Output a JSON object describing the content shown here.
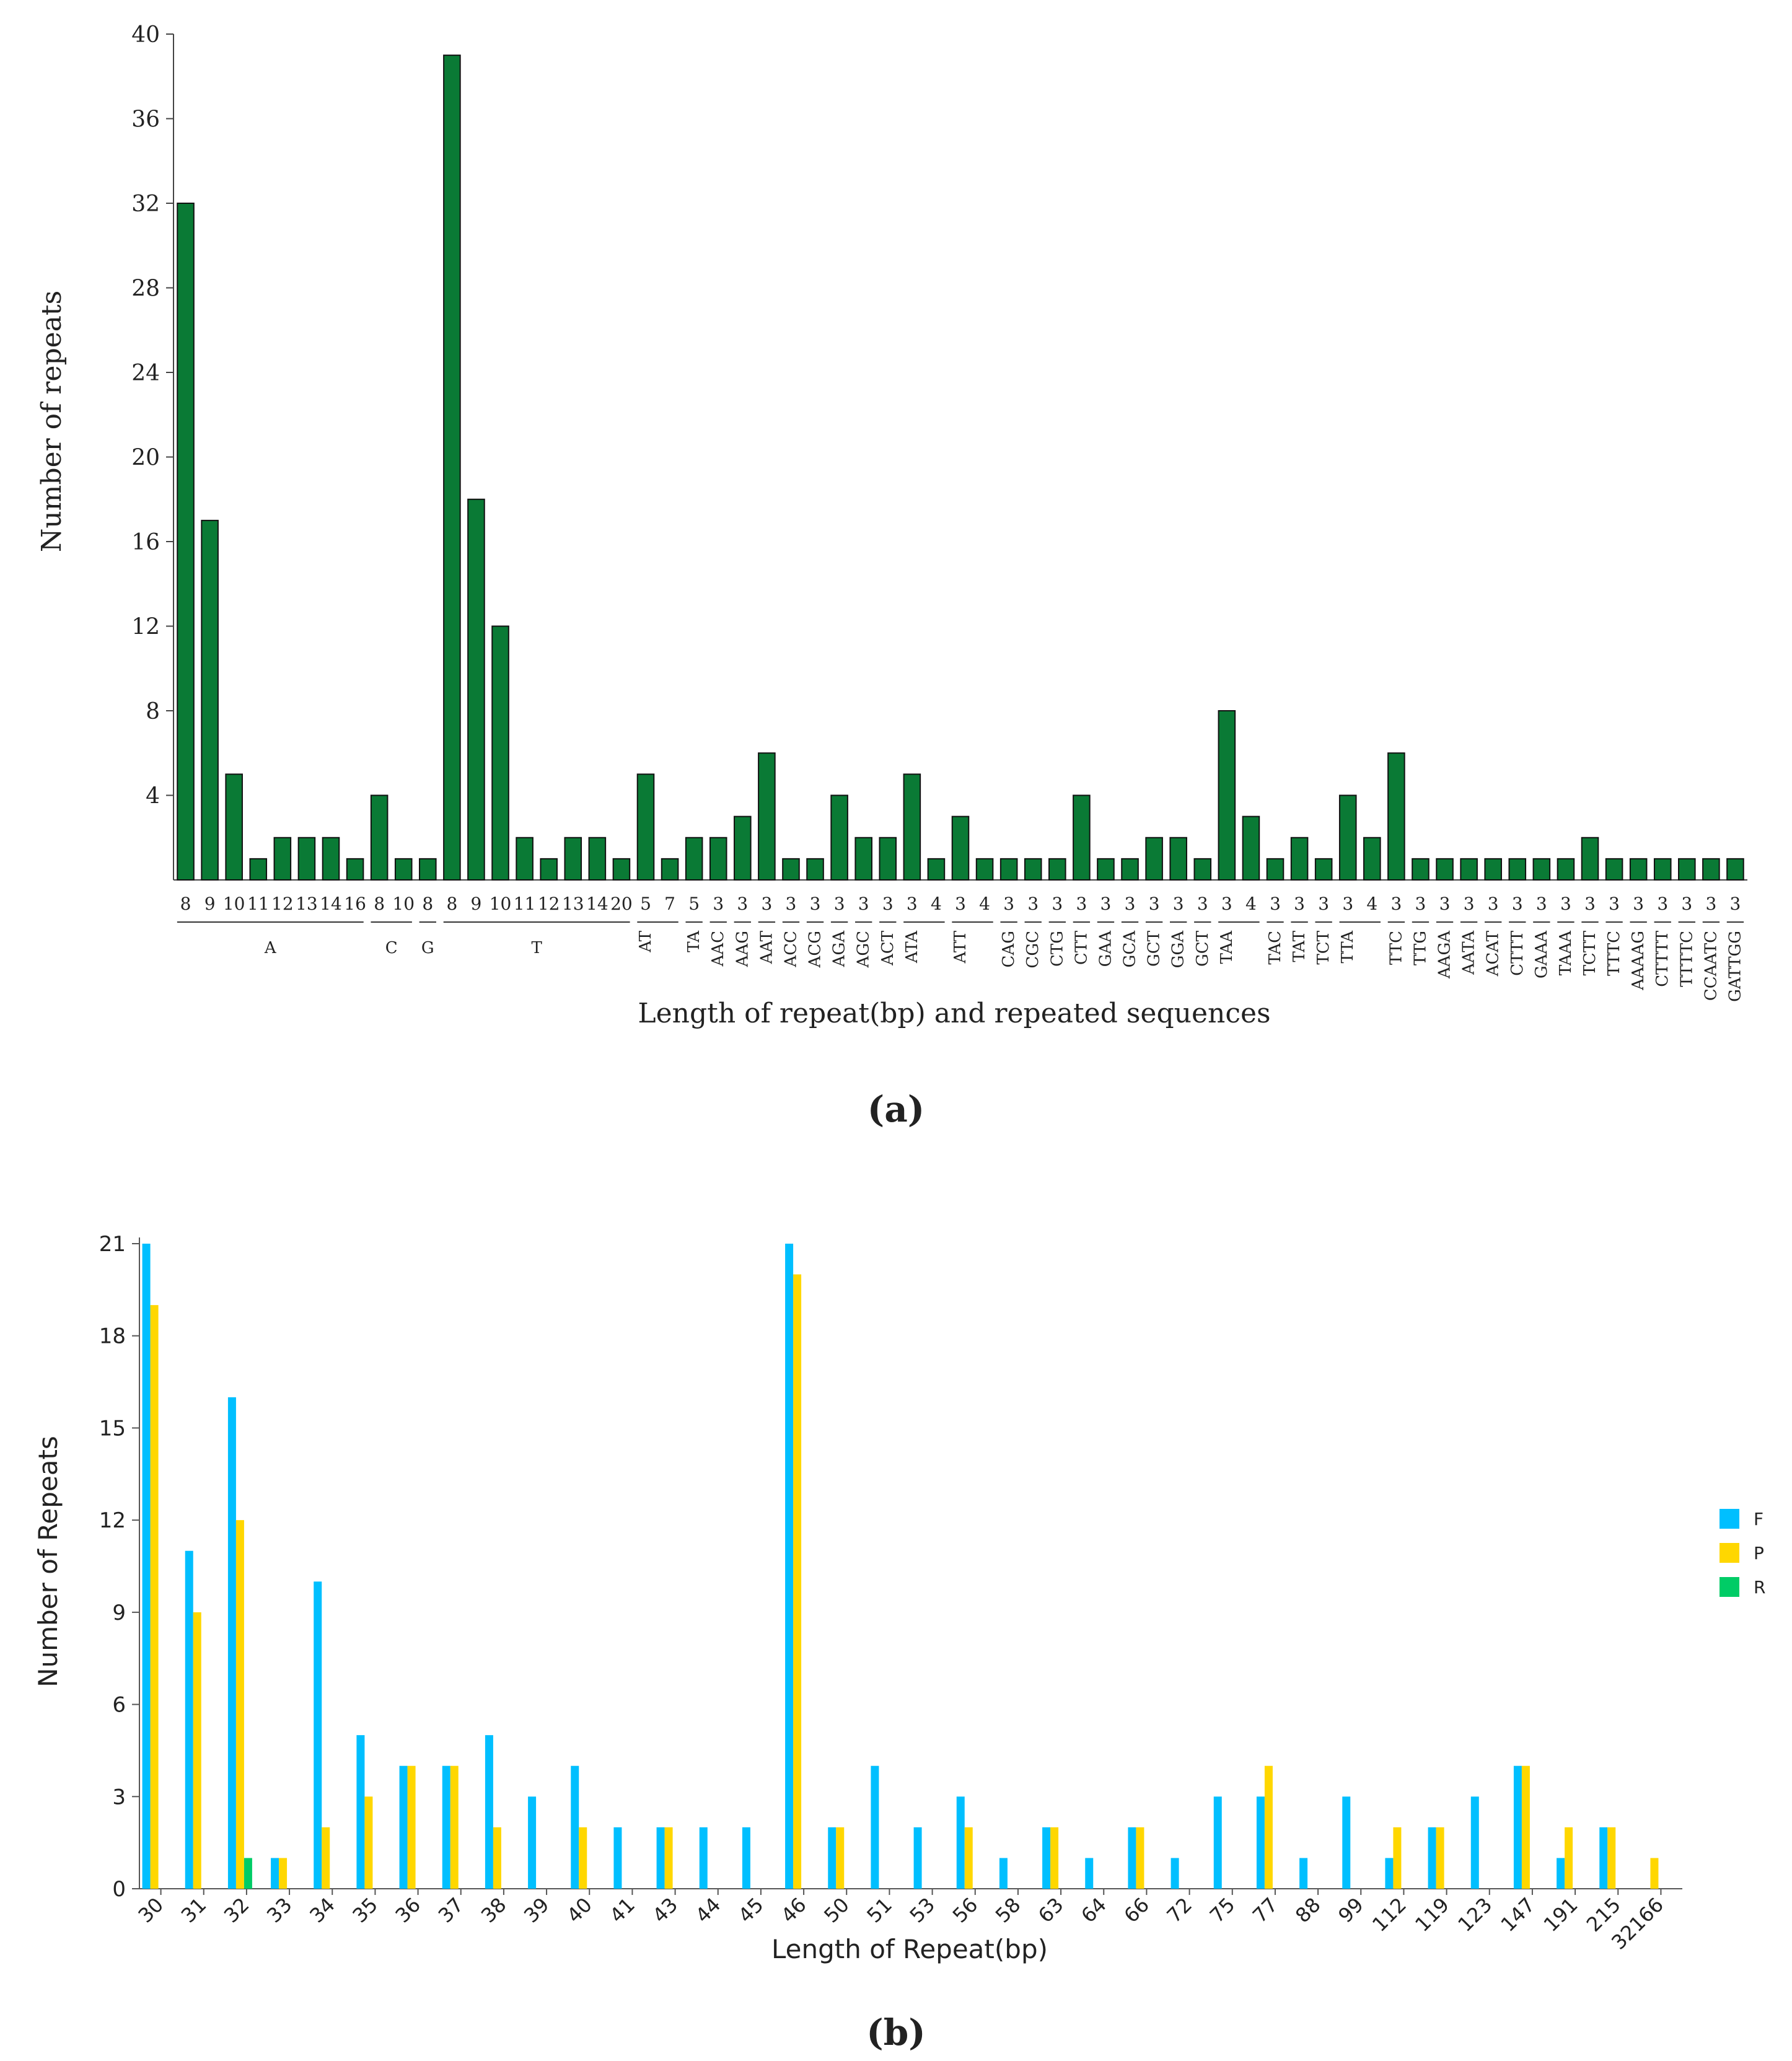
{
  "chart_data": [
    {
      "id": "a",
      "type": "bar",
      "panel_label": "a",
      "xlabel": "Length of repeat(bp) and repeated sequences",
      "ylabel": "Number of repeats",
      "ylim": [
        0,
        40
      ],
      "yticks": [
        "4",
        "8",
        "12",
        "16",
        "20",
        "24",
        "28",
        "32",
        "36",
        "40"
      ],
      "bar_color": "#0a7a35",
      "groups": [
        {
          "name": "A",
          "start": 0,
          "end": 7
        },
        {
          "name": "C",
          "start": 8,
          "end": 9
        },
        {
          "name": "G",
          "start": 10,
          "end": 10
        },
        {
          "name": "T",
          "start": 11,
          "end": 18
        },
        {
          "name": "AT",
          "start": 19,
          "end": 20
        },
        {
          "name": "TA",
          "start": 21,
          "end": 21
        },
        {
          "name": "AAC",
          "start": 22,
          "end": 22
        },
        {
          "name": "AAG",
          "start": 23,
          "end": 23
        },
        {
          "name": "AAT",
          "start": 24,
          "end": 24
        },
        {
          "name": "ACC",
          "start": 25,
          "end": 25
        },
        {
          "name": "ACG",
          "start": 26,
          "end": 26
        },
        {
          "name": "AGA",
          "start": 27,
          "end": 27
        },
        {
          "name": "AGC",
          "start": 28,
          "end": 28
        },
        {
          "name": "ACT",
          "start": 29,
          "end": 29
        },
        {
          "name": "ATA",
          "start": 30,
          "end": 31
        },
        {
          "name": "ATT",
          "start": 32,
          "end": 33
        },
        {
          "name": "CAG",
          "start": 34,
          "end": 34
        },
        {
          "name": "CGC",
          "start": 35,
          "end": 35
        },
        {
          "name": "CTG",
          "start": 36,
          "end": 36
        },
        {
          "name": "CTT",
          "start": 37,
          "end": 37
        },
        {
          "name": "GAA",
          "start": 38,
          "end": 38
        },
        {
          "name": "GCA",
          "start": 39,
          "end": 39
        },
        {
          "name": "GCT",
          "start": 40,
          "end": 40
        },
        {
          "name": "GGA",
          "start": 41,
          "end": 41
        },
        {
          "name": "GCT",
          "start": 42,
          "end": 42
        },
        {
          "name": "TAA",
          "start": 43,
          "end": 44
        },
        {
          "name": "TAC",
          "start": 45,
          "end": 45
        },
        {
          "name": "TAT",
          "start": 46,
          "end": 46
        },
        {
          "name": "TCT",
          "start": 47,
          "end": 47
        },
        {
          "name": "TTA",
          "start": 48,
          "end": 49
        },
        {
          "name": "TTC",
          "start": 50,
          "end": 50
        },
        {
          "name": "TTG",
          "start": 51,
          "end": 51
        },
        {
          "name": "AAGA",
          "start": 52,
          "end": 52
        },
        {
          "name": "AATA",
          "start": 53,
          "end": 53
        },
        {
          "name": "ACAT",
          "start": 54,
          "end": 54
        },
        {
          "name": "CTTT",
          "start": 55,
          "end": 55
        },
        {
          "name": "GAAA",
          "start": 56,
          "end": 56
        },
        {
          "name": "TAAA",
          "start": 57,
          "end": 57
        },
        {
          "name": "TCTT",
          "start": 58,
          "end": 58
        },
        {
          "name": "TTTC",
          "start": 59,
          "end": 59
        },
        {
          "name": "AAAAG",
          "start": 60,
          "end": 60
        },
        {
          "name": "CTTTT",
          "start": 61,
          "end": 61
        },
        {
          "name": "TTTTC",
          "start": 62,
          "end": 62
        },
        {
          "name": "CCAATC",
          "start": 63,
          "end": 63
        },
        {
          "name": "GATTGG",
          "start": 64,
          "end": 64
        }
      ],
      "categories": [
        "8",
        "9",
        "10",
        "11",
        "12",
        "13",
        "14",
        "16",
        "8",
        "10",
        "8",
        "8",
        "9",
        "10",
        "11",
        "12",
        "13",
        "14",
        "20",
        "5",
        "7",
        "5",
        "3",
        "3",
        "3",
        "3",
        "3",
        "3",
        "3",
        "3",
        "3",
        "4",
        "3",
        "4",
        "3",
        "3",
        "3",
        "3",
        "3",
        "3",
        "3",
        "3",
        "3",
        "3",
        "4",
        "3",
        "3",
        "3",
        "3",
        "4",
        "3",
        "3",
        "3",
        "3",
        "3",
        "3",
        "3",
        "3",
        "3",
        "3",
        "3",
        "3",
        "3",
        "3",
        "3"
      ],
      "values": [
        32,
        17,
        5,
        1,
        2,
        2,
        2,
        1,
        4,
        1,
        1,
        39,
        18,
        12,
        2,
        1,
        2,
        2,
        1,
        5,
        1,
        2,
        2,
        3,
        6,
        1,
        1,
        4,
        2,
        2,
        5,
        1,
        3,
        1,
        1,
        1,
        1,
        4,
        1,
        1,
        2,
        2,
        1,
        8,
        3,
        1,
        2,
        1,
        4,
        2,
        6,
        1,
        1,
        1,
        1,
        1,
        1,
        1,
        2,
        1,
        1,
        1,
        1,
        1,
        1
      ]
    },
    {
      "id": "b",
      "type": "bar",
      "panel_label": "b",
      "xlabel": "Length of Repeat(bp)",
      "ylabel": "Number of Repeats",
      "ylim": [
        0,
        21
      ],
      "yticks": [
        "0",
        "3",
        "6",
        "9",
        "12",
        "15",
        "18",
        "21"
      ],
      "categories": [
        "30",
        "31",
        "32",
        "33",
        "34",
        "35",
        "36",
        "37",
        "38",
        "39",
        "40",
        "41",
        "43",
        "44",
        "45",
        "46",
        "50",
        "51",
        "53",
        "56",
        "58",
        "63",
        "64",
        "66",
        "72",
        "75",
        "77",
        "88",
        "99",
        "112",
        "119",
        "123",
        "147",
        "191",
        "215",
        "32166"
      ],
      "series": [
        {
          "name": "F",
          "color": "#00bfff",
          "values": [
            21,
            11,
            16,
            1,
            10,
            5,
            4,
            4,
            5,
            3,
            4,
            2,
            2,
            2,
            2,
            21,
            2,
            4,
            2,
            3,
            1,
            2,
            1,
            2,
            1,
            3,
            3,
            1,
            3,
            1,
            2,
            3,
            4,
            1,
            2,
            0
          ]
        },
        {
          "name": "P",
          "color": "#ffd700",
          "values": [
            19,
            9,
            12,
            1,
            2,
            3,
            4,
            4,
            2,
            0,
            2,
            0,
            2,
            0,
            0,
            20,
            2,
            0,
            0,
            2,
            0,
            2,
            0,
            2,
            0,
            0,
            4,
            0,
            0,
            2,
            2,
            0,
            4,
            2,
            2,
            1
          ]
        },
        {
          "name": "R",
          "color": "#00cc66",
          "values": [
            0,
            0,
            1,
            0,
            0,
            0,
            0,
            0,
            0,
            0,
            0,
            0,
            0,
            0,
            0,
            0,
            0,
            0,
            0,
            0,
            0,
            0,
            0,
            0,
            0,
            0,
            0,
            0,
            0,
            0,
            0,
            0,
            0,
            0,
            0,
            0
          ]
        }
      ]
    }
  ]
}
